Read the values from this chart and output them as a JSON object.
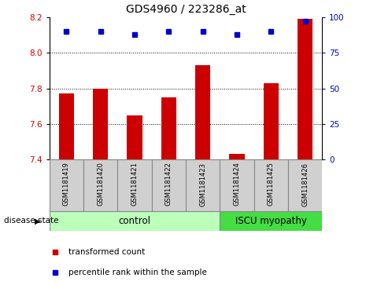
{
  "title": "GDS4960 / 223286_at",
  "samples": [
    "GSM1181419",
    "GSM1181420",
    "GSM1181421",
    "GSM1181422",
    "GSM1181423",
    "GSM1181424",
    "GSM1181425",
    "GSM1181426"
  ],
  "bar_values": [
    7.77,
    7.8,
    7.65,
    7.75,
    7.93,
    7.43,
    7.83,
    8.19
  ],
  "dot_values": [
    90,
    90,
    88,
    90,
    90,
    88,
    90,
    97
  ],
  "ylim_left": [
    7.4,
    8.2
  ],
  "ylim_right": [
    0,
    100
  ],
  "yticks_left": [
    7.4,
    7.6,
    7.8,
    8.0,
    8.2
  ],
  "yticks_right": [
    0,
    25,
    50,
    75,
    100
  ],
  "bar_color": "#cc0000",
  "dot_color": "#0000cc",
  "grid_yticks": [
    7.6,
    7.8,
    8.0
  ],
  "n_control": 5,
  "n_disease": 3,
  "control_label": "control",
  "disease_label": "ISCU myopathy",
  "control_color": "#bbffbb",
  "disease_color": "#44dd44",
  "label_bar": "transformed count",
  "label_dot": "percentile rank within the sample",
  "disease_state_label": "disease state",
  "tick_label_color_left": "#cc0000",
  "tick_label_color_right": "#0000cc",
  "bar_width": 0.45
}
